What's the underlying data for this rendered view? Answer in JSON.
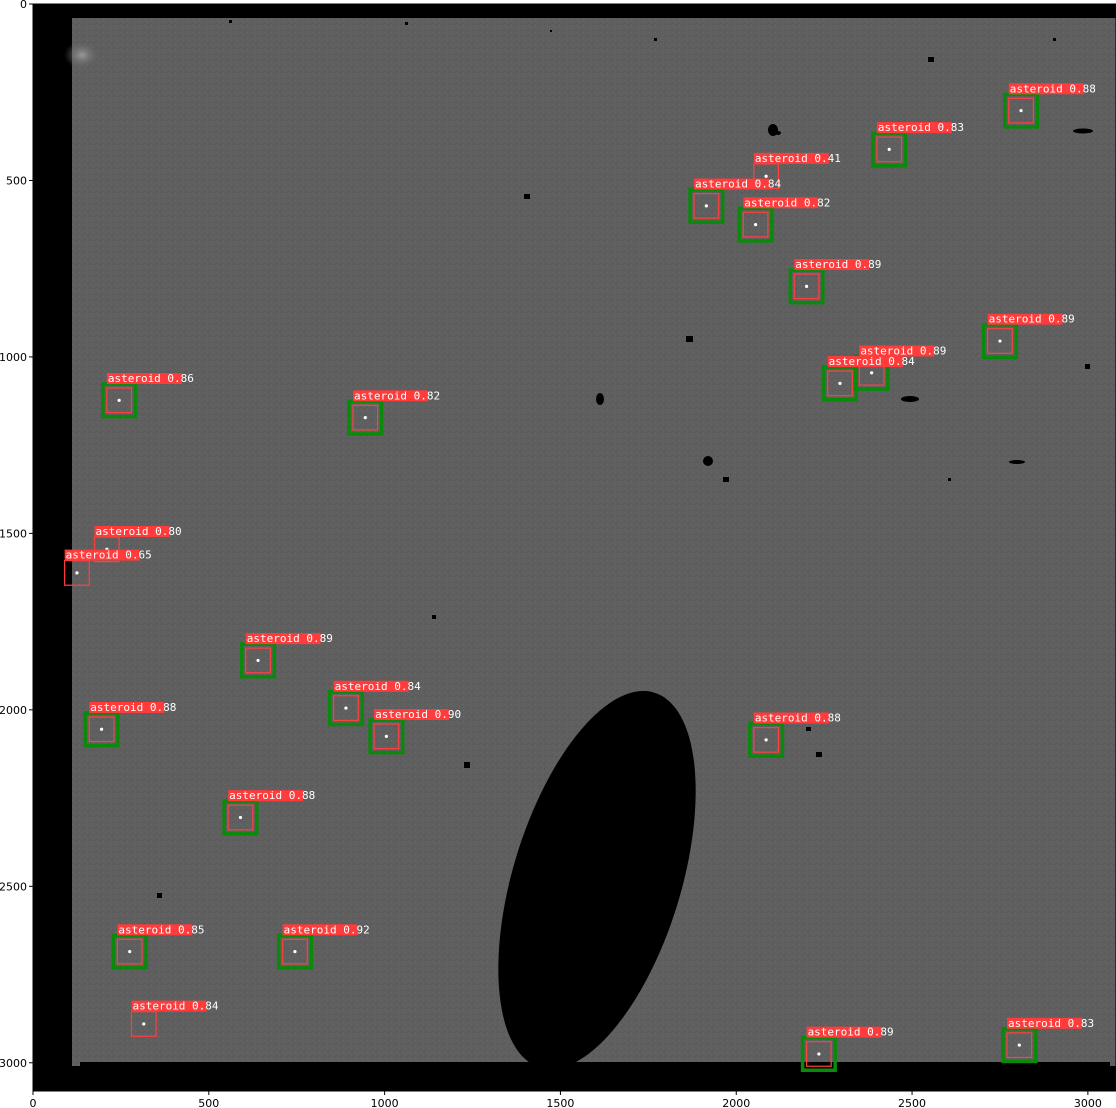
{
  "axes": {
    "x_ticks": [
      "0",
      "500",
      "1000",
      "1500",
      "2000",
      "2500",
      "3000"
    ],
    "y_ticks": [
      "0",
      "500",
      "1000",
      "1500",
      "2000",
      "2500",
      "3000"
    ],
    "x_max": 3080,
    "y_max": 3080
  },
  "colors": {
    "prediction_box": "#ff4040",
    "ground_truth_box": "#0a8a0a",
    "label_bg": "#ff3b3b",
    "background_field": "#5f5f5f"
  },
  "detections": [
    {
      "label": "asteroid 0.88",
      "x": 2810,
      "y": 302,
      "gt": true
    },
    {
      "label": "asteroid 0.83",
      "x": 2435,
      "y": 412,
      "gt": true
    },
    {
      "label": "asteroid 0.41",
      "x": 2085,
      "y": 488,
      "gt": false
    },
    {
      "label": "asteroid 0.84",
      "x": 1915,
      "y": 572,
      "gt": true
    },
    {
      "label": "asteroid 0.82",
      "x": 2055,
      "y": 625,
      "gt": true
    },
    {
      "label": "asteroid 0.89",
      "x": 2200,
      "y": 800,
      "gt": true
    },
    {
      "label": "asteroid 0.89",
      "x": 2750,
      "y": 955,
      "gt": true
    },
    {
      "label": "asteroid 0.89",
      "x": 2385,
      "y": 1045,
      "gt": true
    },
    {
      "label": "asteroid 0.84",
      "x": 2295,
      "y": 1075,
      "gt": true
    },
    {
      "label": "asteroid 0.86",
      "x": 245,
      "y": 1123,
      "gt": true
    },
    {
      "label": "asteroid 0.82",
      "x": 945,
      "y": 1172,
      "gt": true
    },
    {
      "label": "asteroid 0.80",
      "x": 210,
      "y": 1545,
      "gt": false
    },
    {
      "label": "asteroid 0.65",
      "x": 125,
      "y": 1612,
      "gt": false
    },
    {
      "label": "asteroid 0.89",
      "x": 640,
      "y": 1860,
      "gt": true
    },
    {
      "label": "asteroid 0.84",
      "x": 890,
      "y": 1995,
      "gt": true
    },
    {
      "label": "asteroid 0.88",
      "x": 195,
      "y": 2055,
      "gt": true
    },
    {
      "label": "asteroid 0.90",
      "x": 1005,
      "y": 2075,
      "gt": true
    },
    {
      "label": "asteroid 0.88",
      "x": 2085,
      "y": 2085,
      "gt": true
    },
    {
      "label": "asteroid 0.88",
      "x": 590,
      "y": 2305,
      "gt": true
    },
    {
      "label": "asteroid 0.85",
      "x": 275,
      "y": 2685,
      "gt": true
    },
    {
      "label": "asteroid 0.92",
      "x": 745,
      "y": 2685,
      "gt": true
    },
    {
      "label": "asteroid 0.84",
      "x": 315,
      "y": 2890,
      "gt": false
    },
    {
      "label": "asteroid 0.89",
      "x": 2235,
      "y": 2975,
      "gt": true
    },
    {
      "label": "asteroid 0.83",
      "x": 2805,
      "y": 2950,
      "gt": true
    }
  ]
}
